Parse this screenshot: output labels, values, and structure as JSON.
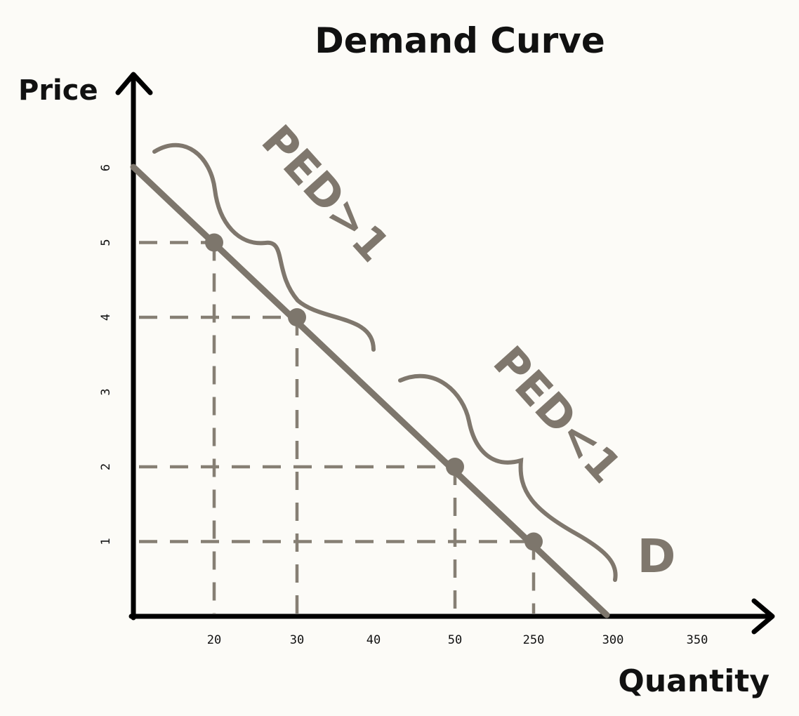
{
  "chart_data": {
    "type": "line",
    "title": "Demand Curve",
    "xlabel": "Quantity",
    "ylabel": "Price",
    "x_tick_labels": [
      "20",
      "30",
      "40",
      "50",
      "250",
      "300",
      "350"
    ],
    "y_tick_labels": [
      "1",
      "2",
      "3",
      "4",
      "5",
      "6"
    ],
    "series": [
      {
        "name": "D",
        "points": [
          [
            "20",
            5
          ],
          [
            "30",
            4
          ],
          [
            "50",
            2
          ],
          [
            "250",
            1
          ]
        ]
      }
    ],
    "line_endpoints": [
      [
        "",
        6
      ],
      [
        "300",
        0
      ]
    ],
    "guide_lines": "dashed",
    "annotations": [
      {
        "text": "PED>1",
        "between": [
          "20",
          "40"
        ]
      },
      {
        "text": "PED<1",
        "between": [
          "50",
          "300"
        ]
      }
    ],
    "grid": false,
    "colors": {
      "line": "#7d766c",
      "guides": "#867f74",
      "axis": "#000000",
      "annotation": "#7f776d"
    }
  }
}
